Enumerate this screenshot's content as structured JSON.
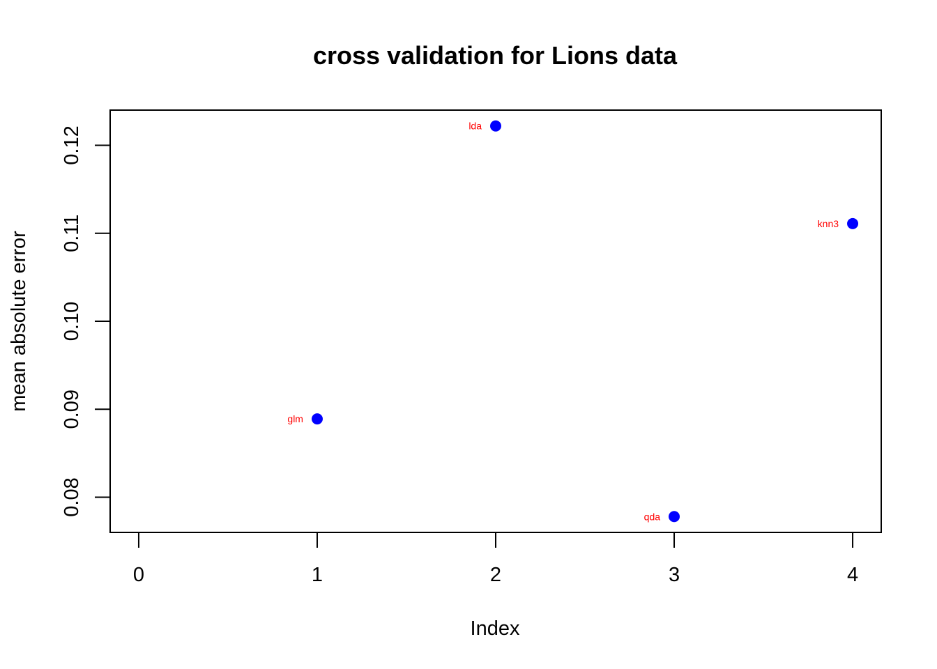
{
  "chart_data": {
    "type": "scatter",
    "title": "cross validation for Lions data",
    "xlabel": "Index",
    "ylabel": "mean absolute error",
    "xlim": [
      -0.16,
      4.16
    ],
    "ylim": [
      0.076,
      0.124
    ],
    "x_ticks": [
      0,
      1,
      2,
      3,
      4
    ],
    "x_tick_labels": [
      "0",
      "1",
      "2",
      "3",
      "4"
    ],
    "y_ticks": [
      0.08,
      0.09,
      0.1,
      0.11,
      0.12
    ],
    "y_tick_labels": [
      "0.08",
      "0.09",
      "0.10",
      "0.11",
      "0.12"
    ],
    "grid": false,
    "point_color": "#0000ff",
    "label_color": "#ff0000",
    "points": [
      {
        "x": 1,
        "y": 0.0889,
        "label": "glm"
      },
      {
        "x": 2,
        "y": 0.1222,
        "label": "lda"
      },
      {
        "x": 3,
        "y": 0.0778,
        "label": "qda"
      },
      {
        "x": 4,
        "y": 0.1111,
        "label": "knn3"
      }
    ]
  }
}
